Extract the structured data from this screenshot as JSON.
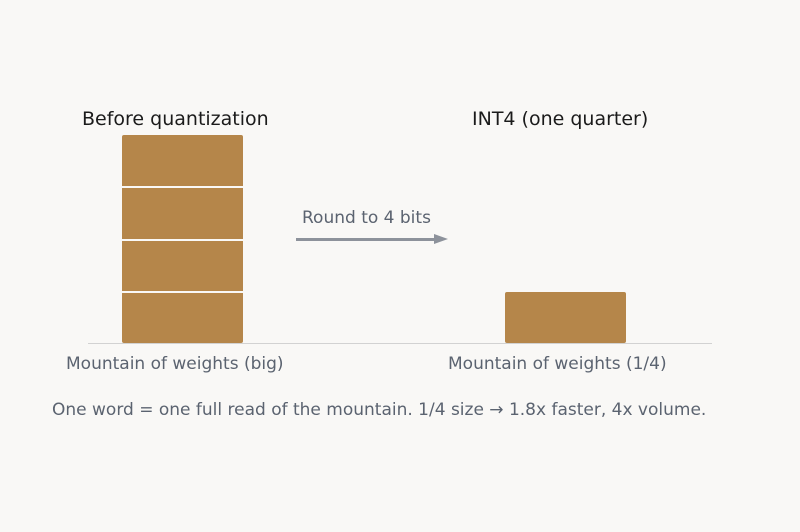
{
  "left_panel": {
    "title": "Before quantization",
    "caption": "Mountain of weights (big)",
    "segments": 4
  },
  "right_panel": {
    "title": "INT4 (one quarter)",
    "caption": "Mountain of weights (1/4)",
    "segments": 1
  },
  "arrow": {
    "label": "Round to 4 bits"
  },
  "footnote": "One word = one full read of the mountain. 1/4 size → 1.8x faster, 4x volume.",
  "colors": {
    "block": "#b5864a",
    "background": "#f9f8f6",
    "text_primary": "#1b1b1b",
    "text_secondary": "#5b6370",
    "arrow": "#8d929b",
    "baseline": "#d2d2d2"
  }
}
